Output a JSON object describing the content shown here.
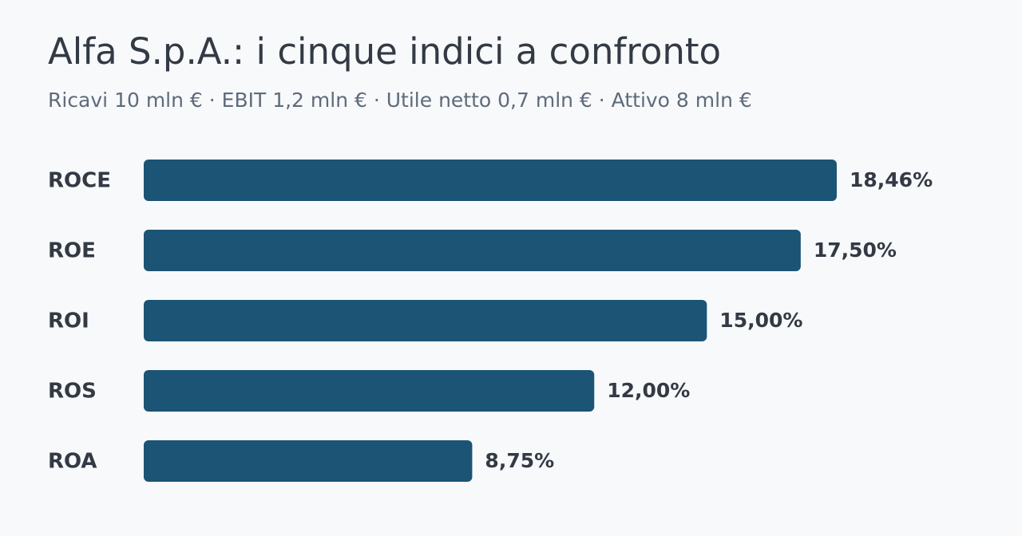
{
  "chart_data": {
    "type": "bar",
    "orientation": "horizontal",
    "title": "Alfa S.p.A.: i cinque indici a confronto",
    "subtitle": "Ricavi 10 mln € · EBIT 1,2 mln € · Utile netto 0,7 mln € · Attivo 8 mln €",
    "categories": [
      "ROCE",
      "ROE",
      "ROI",
      "ROS",
      "ROA"
    ],
    "values": [
      18.46,
      17.5,
      15,
      12,
      8.75
    ],
    "value_labels": [
      "18,46%",
      "17,50%",
      "15,00%",
      "12,00%",
      "8,75%"
    ],
    "color": "#1b5474"
  }
}
